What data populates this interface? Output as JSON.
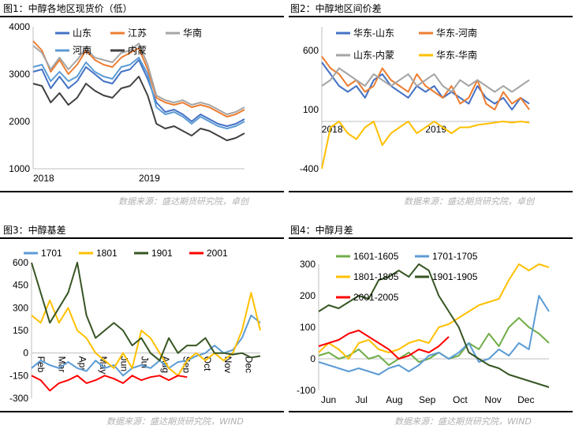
{
  "titles": [
    "图1：中醇各地区现货价（低）",
    "图2：中醇地区间价差",
    "图3：中醇基差",
    "图4：中醇月差"
  ],
  "sources": [
    "数据来源：盛达期货研究院，卓创",
    "数据来源：盛达期货研究院，卓创",
    "数据来源：盛达期货研究院，WIND",
    "数据来源：盛达期货研究院，WIND"
  ],
  "colors": {
    "blue": "#4472c4",
    "orange": "#ed7d31",
    "gray": "#a5a5a5",
    "lightblue": "#5b9bd5",
    "dark": "#404040",
    "yellow": "#ffc000",
    "darkgreen": "#375623",
    "red": "#ff0000",
    "green": "#70ad47"
  },
  "chart_data": [
    {
      "type": "line",
      "ylim": [
        1000,
        4000
      ],
      "yticks": [
        "1000",
        "2000",
        "3000",
        "4000"
      ],
      "xticks": [
        "2018",
        "2019"
      ],
      "legend": [
        "山东",
        "江苏",
        "华南",
        "河南",
        "内蒙"
      ],
      "series": [
        {
          "name": "山东",
          "color": "blue",
          "values": [
            3050,
            3100,
            2700,
            2950,
            2700,
            2850,
            3150,
            3000,
            2850,
            2800,
            3050,
            3100,
            3300,
            2900,
            2400,
            2200,
            2250,
            2150,
            2000,
            2150,
            2050,
            1950,
            1900,
            1950,
            2050
          ]
        },
        {
          "name": "江苏",
          "color": "orange",
          "values": [
            3700,
            3500,
            3050,
            3300,
            3000,
            3200,
            3500,
            3300,
            3200,
            3150,
            3350,
            3450,
            3550,
            3100,
            2500,
            2400,
            2350,
            2400,
            2300,
            2350,
            2300,
            2200,
            2100,
            2150,
            2250
          ]
        },
        {
          "name": "华南",
          "color": "gray",
          "values": [
            3600,
            3450,
            3100,
            3350,
            3100,
            3300,
            3550,
            3350,
            3300,
            3250,
            3450,
            3500,
            3650,
            3200,
            2550,
            2450,
            2400,
            2450,
            2350,
            2400,
            2350,
            2250,
            2150,
            2200,
            2300
          ]
        },
        {
          "name": "河南",
          "color": "lightblue",
          "values": [
            3150,
            3200,
            2850,
            3050,
            2850,
            2950,
            3250,
            3050,
            2950,
            2900,
            3150,
            3200,
            3350,
            3000,
            2300,
            2150,
            2200,
            2100,
            1950,
            2100,
            2000,
            1900,
            1850,
            1900,
            2000
          ]
        },
        {
          "name": "内蒙",
          "color": "dark",
          "values": [
            2800,
            2750,
            2400,
            2600,
            2350,
            2500,
            2800,
            2650,
            2550,
            2500,
            2700,
            2750,
            2950,
            2550,
            1950,
            1850,
            1900,
            1800,
            1700,
            1850,
            1800,
            1700,
            1600,
            1650,
            1750
          ]
        }
      ]
    },
    {
      "type": "line",
      "ylim": [
        -400,
        800
      ],
      "yticks": [
        "-400",
        "100",
        "600"
      ],
      "xticks": [
        "2018",
        "2019"
      ],
      "legend": [
        "华东-山东",
        "华东-河南",
        "山东-内蒙",
        "华东-华南"
      ],
      "series": [
        {
          "name": "华东-山东",
          "color": "blue",
          "values": [
            500,
            400,
            300,
            250,
            300,
            200,
            350,
            400,
            300,
            250,
            200,
            300,
            250,
            300,
            200,
            250,
            200,
            150,
            300,
            200,
            150,
            200,
            100,
            200,
            150
          ]
        },
        {
          "name": "华东-河南",
          "color": "orange",
          "values": [
            550,
            450,
            400,
            300,
            350,
            250,
            300,
            450,
            350,
            300,
            250,
            400,
            300,
            250,
            200,
            300,
            150,
            200,
            350,
            150,
            100,
            250,
            150,
            200,
            100
          ]
        },
        {
          "name": "山东-内蒙",
          "color": "gray",
          "values": [
            300,
            350,
            450,
            400,
            350,
            300,
            400,
            350,
            300,
            350,
            400,
            300,
            350,
            400,
            300,
            250,
            350,
            300,
            350,
            300,
            250,
            300,
            250,
            300,
            350
          ]
        },
        {
          "name": "华东-华南",
          "color": "yellow",
          "values": [
            -400,
            -50,
            0,
            -100,
            -150,
            -50,
            0,
            -200,
            -100,
            -50,
            0,
            -100,
            -50,
            0,
            -50,
            -100,
            -50,
            -50,
            -30,
            -20,
            -10,
            0,
            -10,
            0,
            -10
          ]
        }
      ]
    },
    {
      "type": "line",
      "ylim": [
        -300,
        600
      ],
      "yticks": [
        "-300",
        "-150",
        "0",
        "150",
        "300",
        "450",
        "600"
      ],
      "xticks": [
        "Feb",
        "Mar",
        "Apr",
        "May",
        "Jun",
        "Jul",
        "Aug",
        "Sep",
        "Oct",
        "Nov",
        "Dec"
      ],
      "legend": [
        "1701",
        "1801",
        "1901",
        "2001"
      ],
      "series": [
        {
          "name": "1701",
          "color": "lightblue",
          "values": [
            -100,
            -50,
            -80,
            -100,
            -60,
            -100,
            -120,
            -50,
            -100,
            -80,
            -150,
            -100,
            -80,
            -100,
            -50,
            -100,
            -60,
            -50,
            -20,
            0,
            50,
            0,
            20,
            100,
            250,
            200
          ]
        },
        {
          "name": "1801",
          "color": "yellow",
          "values": [
            250,
            200,
            350,
            200,
            300,
            150,
            100,
            0,
            -50,
            -100,
            0,
            -100,
            150,
            100,
            0,
            -100,
            -150,
            -50,
            0,
            -50,
            0,
            -50,
            0,
            150,
            400,
            150
          ]
        },
        {
          "name": "1901",
          "color": "darkgreen",
          "values": [
            600,
            400,
            200,
            300,
            400,
            600,
            250,
            100,
            150,
            200,
            150,
            50,
            100,
            0,
            -50,
            100,
            0,
            50,
            50,
            100,
            0,
            0,
            -10,
            0,
            -30,
            -20
          ]
        },
        {
          "name": "2001",
          "color": "red",
          "values": [
            -150,
            -180,
            -250,
            -200,
            -180,
            -150,
            -200,
            -180,
            -150,
            -170,
            -200,
            -150,
            -180,
            -160,
            -150,
            -180,
            -150,
            -160
          ]
        }
      ]
    },
    {
      "type": "line",
      "ylim": [
        -100,
        300
      ],
      "yticks": [
        "-100",
        "0",
        "100",
        "200",
        "300"
      ],
      "xticks": [
        "Jun",
        "Jul",
        "Aug",
        "Sep",
        "Oct",
        "Nov",
        "Dec"
      ],
      "legend": [
        "1601-1605",
        "1701-1705",
        "1801-1805",
        "1901-1905",
        "2001-2005"
      ],
      "series": [
        {
          "name": "1601-1605",
          "color": "green",
          "values": [
            10,
            20,
            0,
            10,
            30,
            0,
            10,
            -20,
            0,
            20,
            -10,
            0,
            20,
            0,
            10,
            50,
            30,
            80,
            40,
            100,
            130,
            100,
            80,
            50
          ]
        },
        {
          "name": "1701-1705",
          "color": "lightblue",
          "values": [
            -10,
            -20,
            -30,
            -40,
            -30,
            -40,
            -50,
            -30,
            -20,
            -40,
            -20,
            10,
            20,
            0,
            20,
            50,
            -10,
            0,
            30,
            10,
            50,
            30,
            200,
            150
          ]
        },
        {
          "name": "1801-1805",
          "color": "yellow",
          "values": [
            20,
            50,
            30,
            0,
            50,
            60,
            30,
            20,
            30,
            50,
            60,
            50,
            100,
            110,
            130,
            150,
            170,
            180,
            190,
            250,
            300,
            280,
            300,
            290
          ]
        },
        {
          "name": "1901-1905",
          "color": "darkgreen",
          "values": [
            150,
            170,
            160,
            180,
            200,
            190,
            250,
            260,
            280,
            260,
            300,
            280,
            200,
            150,
            100,
            20,
            0,
            -20,
            -30,
            -50,
            -60,
            -70,
            -80,
            -90
          ]
        },
        {
          "name": "2001-2005",
          "color": "red",
          "values": [
            40,
            50,
            60,
            80,
            90,
            70,
            50,
            30,
            0,
            10,
            30,
            20,
            40,
            70
          ]
        }
      ]
    }
  ]
}
